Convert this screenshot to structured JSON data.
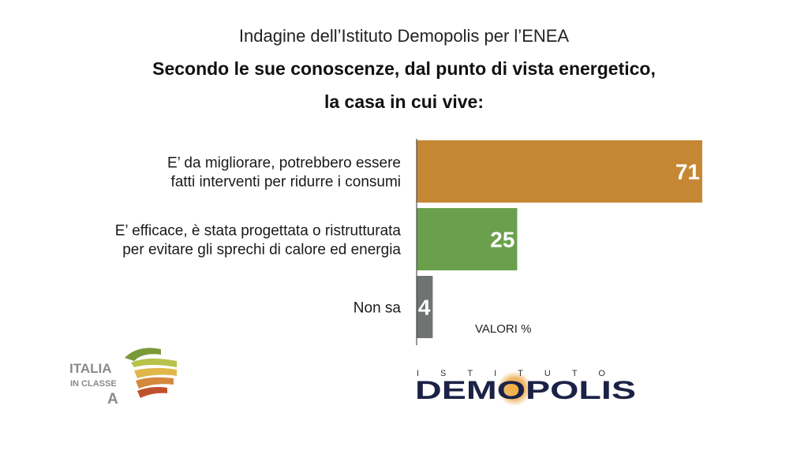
{
  "header": {
    "subtitle": "Indagine dell’Istituto Demopolis per l’ENEA",
    "title_line1": "Secondo le sue conoscenze, dal punto di vista energetico,",
    "title_line2": "la casa in cui vive:"
  },
  "chart_data": {
    "type": "bar",
    "orientation": "horizontal",
    "categories": [
      [
        "E’ da migliorare, potrebbero essere",
        "fatti interventi per ridurre i consumi"
      ],
      [
        "E’ efficace, è stata progettata o ristrutturata",
        "per evitare gli sprechi di calore ed energia"
      ],
      [
        "Non sa"
      ]
    ],
    "values": [
      71,
      25,
      4
    ],
    "colors": [
      "#c68734",
      "#6aa04c",
      "#6f7371"
    ],
    "unit_label": "VALORI %",
    "xlim": [
      0,
      71
    ]
  },
  "logos": {
    "italia_line1": "ITALIA",
    "italia_line2": "IN CLASSE",
    "italia_line3": "A",
    "demopolis_top": "ISTITUTO",
    "demopolis_main": "DEMOPOLIS",
    "italia_colors": [
      "#7a9a3a",
      "#b8c24a",
      "#e0b84a",
      "#d4883c",
      "#c0502e"
    ],
    "demopolis_color": "#1b2246",
    "demopolis_accent": "#e89a2a"
  }
}
